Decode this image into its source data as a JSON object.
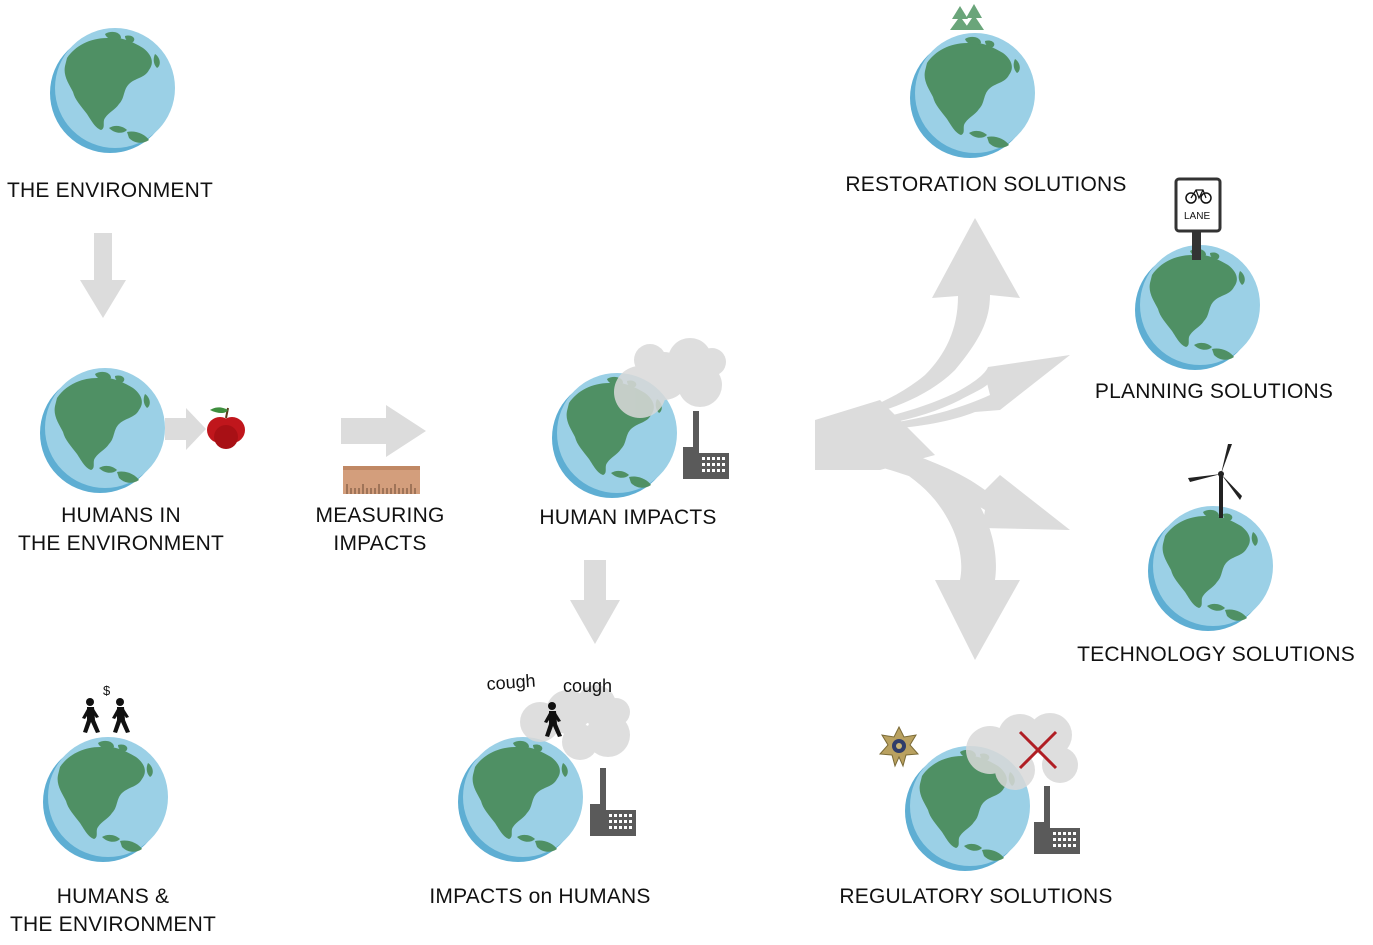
{
  "colors": {
    "ocean": "#9bd0e6",
    "ocean_shadow": "#5eaed3",
    "land": "#4f9064",
    "arrow": "#dcdcdc",
    "smoke": "#d9d9d9",
    "factory": "#5a5a5a",
    "apple": "#c0161c",
    "ruler": "#d39e7c",
    "cross": "#b01e24"
  },
  "icons": [
    "globe-icon",
    "apple-icon",
    "ruler-icon",
    "factory-icon",
    "smoke-icon",
    "person-icon",
    "tree-icon",
    "bike-lane-sign-icon",
    "wind-turbine-icon",
    "sheriff-badge-icon",
    "cross-icon"
  ],
  "nodes": {
    "environment": {
      "line1": "THE ENVIRONMENT"
    },
    "humans_in": {
      "line1": "HUMANS IN",
      "line2": "THE ENVIRONMENT"
    },
    "measuring": {
      "line1": "MEASURING",
      "line2": "IMPACTS"
    },
    "human_impacts": {
      "line1": "HUMAN IMPACTS"
    },
    "humans_and": {
      "line1": "HUMANS &",
      "line2": "THE ENVIRONMENT"
    },
    "impacts_on_humans": {
      "line1": "IMPACTS on HUMANS"
    },
    "restoration": {
      "line1": "RESTORATION SOLUTIONS"
    },
    "planning": {
      "line1": "PLANNING SOLUTIONS"
    },
    "technology": {
      "line1": "TECHNOLOGY SOLUTIONS"
    },
    "regulatory": {
      "line1": "REGULATORY SOLUTIONS"
    }
  },
  "annotations": {
    "lane_sign": "LANE",
    "cough_1": "cough",
    "cough_2": "cough",
    "dollar": "$"
  }
}
